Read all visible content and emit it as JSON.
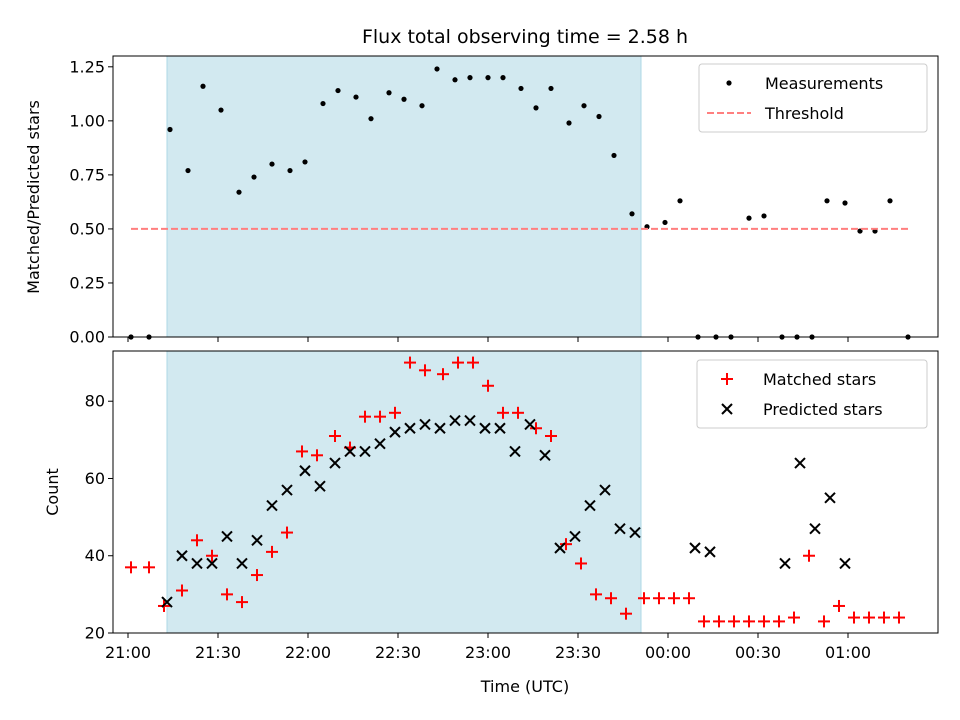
{
  "figure": {
    "title": "Flux total observing time = 2.58 h",
    "shade_color": "#d2e9f0",
    "shade_edge_color": "#add8e6",
    "shade_start": "21:13",
    "shade_end": "23:51"
  },
  "chart_data": [
    {
      "type": "scatter",
      "ylabel": "Matched/Predicted stars",
      "xlabel": "",
      "ylim": [
        0,
        1.3
      ],
      "yticks": [
        0.0,
        0.25,
        0.5,
        0.75,
        1.0,
        1.25
      ],
      "ytick_labels": [
        "0.00",
        "0.25",
        "0.50",
        "0.75",
        "1.00",
        "1.25"
      ],
      "xlim": [
        "20:55",
        "01:30"
      ],
      "grid": false,
      "legend_position": "top-right",
      "series": [
        {
          "name": "Measurements",
          "marker": "dot",
          "color": "#000000",
          "x": [
            "21:01",
            "21:07",
            "21:14",
            "21:20",
            "21:25",
            "21:31",
            "21:37",
            "21:42",
            "21:48",
            "21:54",
            "21:59",
            "22:05",
            "22:10",
            "22:16",
            "22:21",
            "22:27",
            "22:32",
            "22:38",
            "22:43",
            "22:49",
            "22:54",
            "23:00",
            "23:05",
            "23:11",
            "23:16",
            "23:21",
            "23:27",
            "23:32",
            "23:37",
            "23:42",
            "23:48",
            "23:53",
            "23:59",
            "00:04",
            "00:10",
            "00:16",
            "00:21",
            "00:27",
            "00:32",
            "00:38",
            "00:43",
            "00:48",
            "00:53",
            "00:59",
            "01:04",
            "01:09",
            "01:14",
            "01:20"
          ],
          "y": [
            0.0,
            0.0,
            0.96,
            0.77,
            1.16,
            1.05,
            0.67,
            0.74,
            0.8,
            0.77,
            0.81,
            1.08,
            1.14,
            1.11,
            1.01,
            1.13,
            1.1,
            1.07,
            1.24,
            1.19,
            1.2,
            1.2,
            1.2,
            1.15,
            1.06,
            1.15,
            0.99,
            1.07,
            1.02,
            0.84,
            0.57,
            0.51,
            0.53,
            0.63,
            0.0,
            0.0,
            0.0,
            0.55,
            0.56,
            0.0,
            0.0,
            0.0,
            0.63,
            0.62,
            0.49,
            0.49,
            0.63,
            0.0
          ]
        },
        {
          "name": "Threshold",
          "marker": "dashed-line",
          "color": "#ff7f7f",
          "x": [
            "21:01",
            "01:20"
          ],
          "y": [
            0.5,
            0.5
          ]
        }
      ]
    },
    {
      "type": "scatter",
      "ylabel": "Count",
      "xlabel": "Time (UTC)",
      "ylim": [
        20,
        93
      ],
      "yticks": [
        20,
        40,
        60,
        80
      ],
      "ytick_labels": [
        "20",
        "40",
        "60",
        "80"
      ],
      "xlim": [
        "20:55",
        "01:30"
      ],
      "xticks": [
        "21:00",
        "21:30",
        "22:00",
        "22:30",
        "23:00",
        "23:30",
        "00:00",
        "00:30",
        "01:00"
      ],
      "xtick_labels": [
        "21:00",
        "21:30",
        "22:00",
        "22:30",
        "23:00",
        "23:30",
        "00:00",
        "00:30",
        "01:00"
      ],
      "grid": false,
      "legend_position": "top-right",
      "series": [
        {
          "name": "Matched stars",
          "marker": "plus",
          "color": "#ff0000",
          "x": [
            "21:01",
            "21:07",
            "21:12",
            "21:18",
            "21:23",
            "21:28",
            "21:33",
            "21:38",
            "21:43",
            "21:48",
            "21:53",
            "21:58",
            "22:03",
            "22:09",
            "22:14",
            "22:19",
            "22:24",
            "22:29",
            "22:34",
            "22:39",
            "22:45",
            "22:50",
            "22:55",
            "23:00",
            "23:05",
            "23:10",
            "23:16",
            "23:21",
            "23:26",
            "23:31",
            "23:36",
            "23:41",
            "23:46",
            "23:52",
            "23:57",
            "00:02",
            "00:07",
            "00:12",
            "00:17",
            "00:22",
            "00:27",
            "00:32",
            "00:37",
            "00:42",
            "00:47",
            "00:52",
            "00:57",
            "01:02",
            "01:07",
            "01:12",
            "01:17"
          ],
          "y": [
            37,
            37,
            27,
            31,
            44,
            40,
            30,
            28,
            35,
            41,
            46,
            67,
            66,
            71,
            68,
            76,
            76,
            77,
            90,
            88,
            87,
            90,
            90,
            84,
            77,
            77,
            73,
            71,
            43,
            38,
            30,
            29,
            25,
            29,
            29,
            29,
            29,
            23,
            23,
            23,
            23,
            23,
            23,
            24,
            40,
            23,
            27,
            24,
            24,
            24,
            24
          ]
        },
        {
          "name": "Predicted stars",
          "marker": "x",
          "color": "#000000",
          "x": [
            "21:13",
            "21:18",
            "21:23",
            "21:28",
            "21:33",
            "21:38",
            "21:43",
            "21:48",
            "21:53",
            "21:59",
            "22:04",
            "22:09",
            "22:14",
            "22:19",
            "22:24",
            "22:29",
            "22:34",
            "22:39",
            "22:44",
            "22:49",
            "22:54",
            "22:59",
            "23:04",
            "23:09",
            "23:14",
            "23:19",
            "23:24",
            "23:29",
            "23:34",
            "23:39",
            "23:44",
            "23:49",
            "00:09",
            "00:14",
            "00:39",
            "00:44",
            "00:49",
            "00:54",
            "00:59"
          ],
          "y": [
            28,
            40,
            38,
            38,
            45,
            38,
            44,
            53,
            57,
            62,
            58,
            64,
            67,
            67,
            69,
            72,
            73,
            74,
            73,
            75,
            75,
            73,
            73,
            67,
            74,
            66,
            42,
            45,
            53,
            57,
            47,
            46,
            42,
            41,
            38,
            64,
            47,
            55,
            38
          ]
        }
      ]
    }
  ]
}
